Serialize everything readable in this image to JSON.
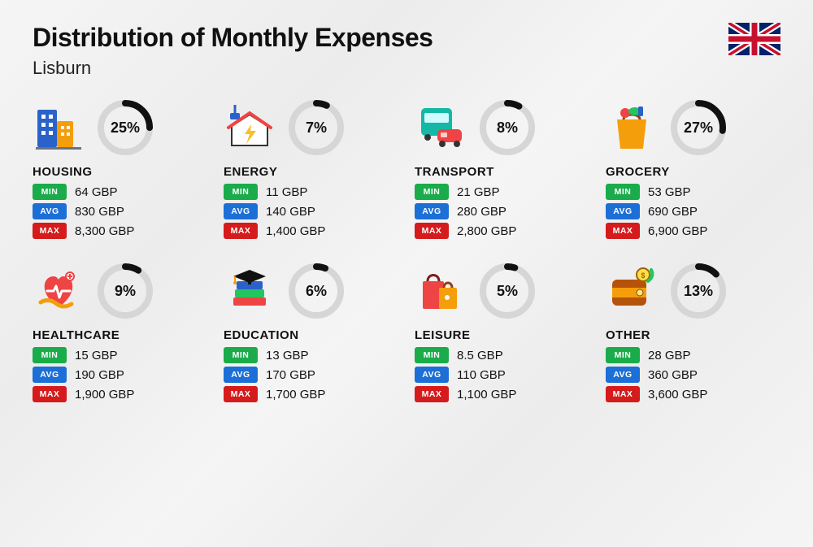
{
  "title": "Distribution of Monthly Expenses",
  "subtitle": "Lisburn",
  "flag": "uk",
  "currency": "GBP",
  "colors": {
    "min_tag": "#1aab4a",
    "avg_tag": "#1b6fd6",
    "max_tag": "#d51b1b",
    "ring_bg": "#d6d6d6",
    "ring_fg": "#111111",
    "text": "#111111",
    "background": "#f3f3f3"
  },
  "ring": {
    "radius": 30,
    "stroke_width": 8,
    "size": 72
  },
  "labels": {
    "min": "MIN",
    "avg": "AVG",
    "max": "MAX"
  },
  "categories": [
    {
      "key": "housing",
      "name": "HOUSING",
      "percent": 25,
      "min": "64 GBP",
      "avg": "830 GBP",
      "max": "8,300 GBP"
    },
    {
      "key": "energy",
      "name": "ENERGY",
      "percent": 7,
      "min": "11 GBP",
      "avg": "140 GBP",
      "max": "1,400 GBP"
    },
    {
      "key": "transport",
      "name": "TRANSPORT",
      "percent": 8,
      "min": "21 GBP",
      "avg": "280 GBP",
      "max": "2,800 GBP"
    },
    {
      "key": "grocery",
      "name": "GROCERY",
      "percent": 27,
      "min": "53 GBP",
      "avg": "690 GBP",
      "max": "6,900 GBP"
    },
    {
      "key": "healthcare",
      "name": "HEALTHCARE",
      "percent": 9,
      "min": "15 GBP",
      "avg": "190 GBP",
      "max": "1,900 GBP"
    },
    {
      "key": "education",
      "name": "EDUCATION",
      "percent": 6,
      "min": "13 GBP",
      "avg": "170 GBP",
      "max": "1,700 GBP"
    },
    {
      "key": "leisure",
      "name": "LEISURE",
      "percent": 5,
      "min": "8.5 GBP",
      "avg": "110 GBP",
      "max": "1,100 GBP"
    },
    {
      "key": "other",
      "name": "OTHER",
      "percent": 13,
      "min": "28 GBP",
      "avg": "360 GBP",
      "max": "3,600 GBP"
    }
  ],
  "icons": {
    "housing": {
      "type": "buildings",
      "colors": [
        "#2a62c9",
        "#f59e0b",
        "#ef4444"
      ]
    },
    "energy": {
      "type": "house-bolt",
      "colors": [
        "#fbbf24",
        "#ef4444",
        "#2a62c9"
      ]
    },
    "transport": {
      "type": "bus-car",
      "colors": [
        "#14b8a6",
        "#ef4444"
      ]
    },
    "grocery": {
      "type": "grocery-bag",
      "colors": [
        "#f59e0b",
        "#22c55e",
        "#ef4444",
        "#2a62c9"
      ]
    },
    "healthcare": {
      "type": "heart-hand",
      "colors": [
        "#ef4444",
        "#f59e0b"
      ]
    },
    "education": {
      "type": "books-cap",
      "colors": [
        "#2a62c9",
        "#22c55e",
        "#ef4444",
        "#111"
      ]
    },
    "leisure": {
      "type": "shopping-bags",
      "colors": [
        "#ef4444",
        "#f59e0b"
      ]
    },
    "other": {
      "type": "wallet",
      "colors": [
        "#b45309",
        "#f59e0b",
        "#22c55e"
      ]
    }
  }
}
